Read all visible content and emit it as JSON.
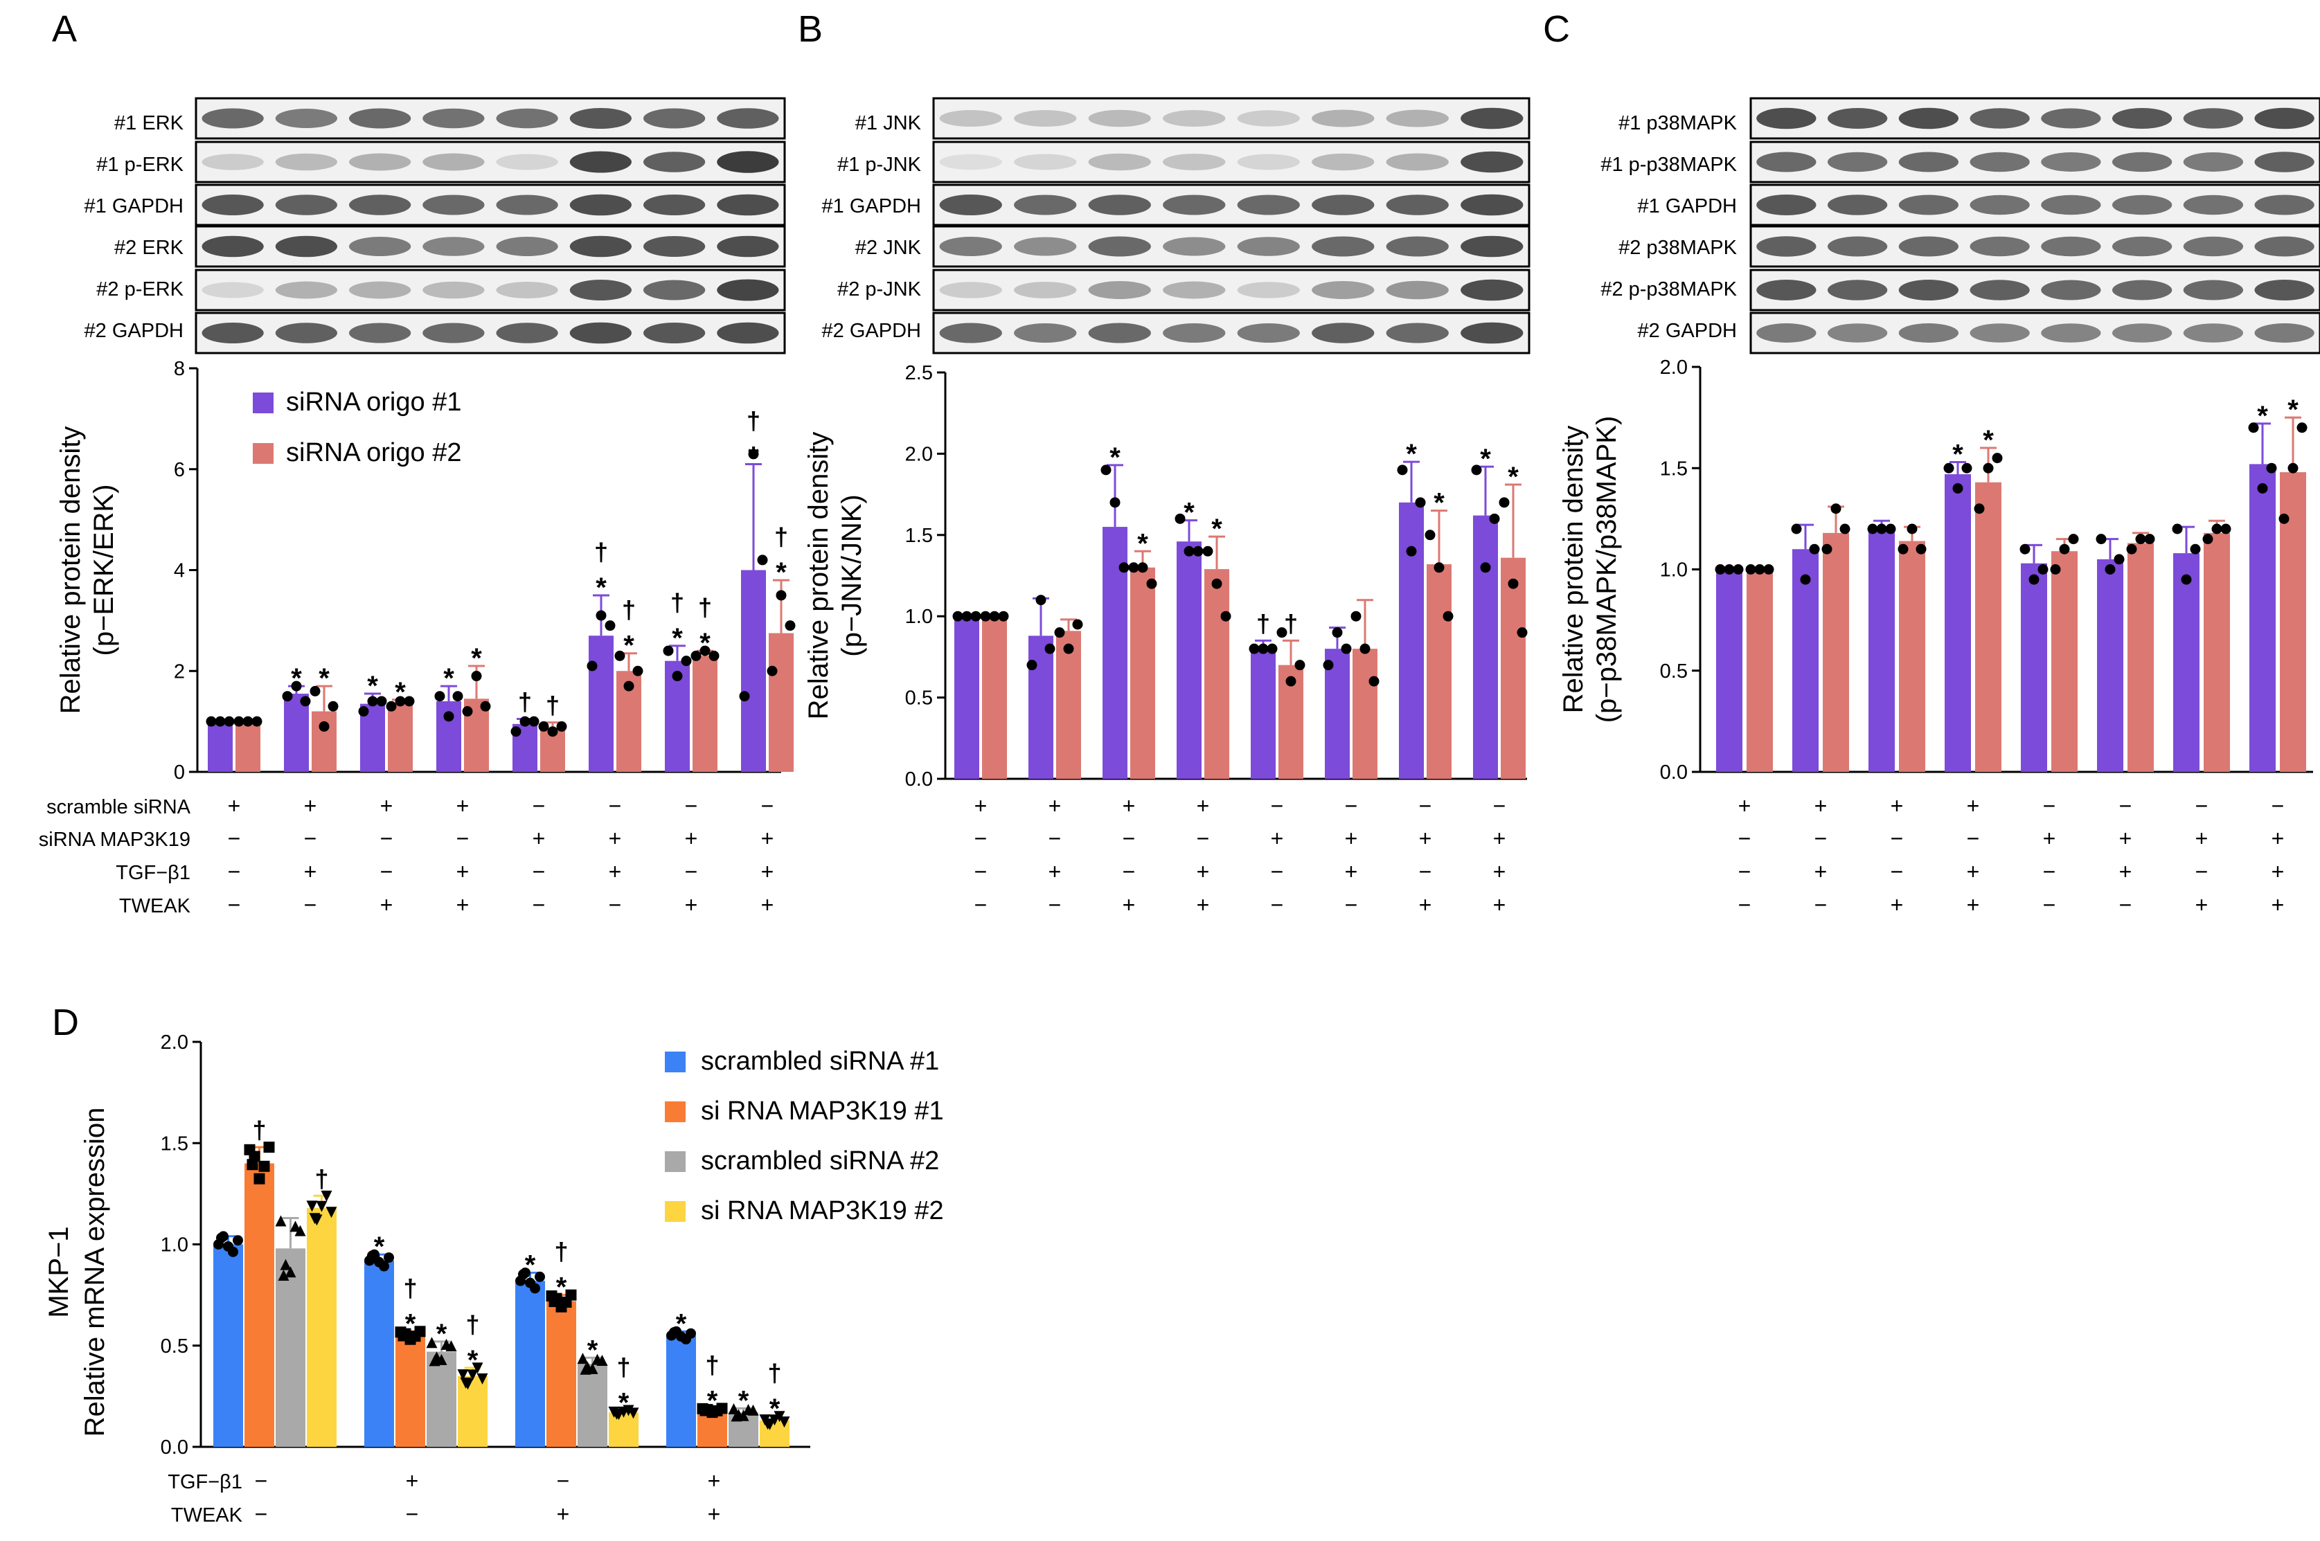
{
  "colors": {
    "purple": "#7c4bd9",
    "salmon": "#dc7872",
    "blue": "#3b82f6",
    "orange": "#f97c35",
    "gray": "#a9a9a9",
    "yellow": "#fcd541"
  },
  "panels": {
    "A": {
      "letter": "A",
      "blot_labels": [
        "#1 ERK",
        "#1 p-ERK",
        "#1 GAPDH",
        "#2 ERK",
        "#2 p-ERK",
        "#2 GAPDH"
      ]
    },
    "B": {
      "letter": "B",
      "blot_labels": [
        "#1 JNK",
        "#1 p-JNK",
        "#1 GAPDH",
        "#2 JNK",
        "#2 p-JNK",
        "#2 GAPDH"
      ]
    },
    "C": {
      "letter": "C",
      "blot_labels": [
        "#1 p38MAPK",
        "#1 p-p38MAPK",
        "#1 GAPDH",
        "#2 p38MAPK",
        "#2 p-p38MAPK",
        "#2 GAPDH"
      ]
    },
    "D": {
      "letter": "D"
    }
  },
  "conditions_abc": {
    "row_labels": [
      "scramble siRNA",
      "siRNA MAP3K19",
      "TGF−β1",
      "TWEAK"
    ],
    "rows": [
      [
        "+",
        "+",
        "+",
        "+",
        "−",
        "−",
        "−",
        "−"
      ],
      [
        "−",
        "−",
        "−",
        "−",
        "+",
        "+",
        "+",
        "+"
      ],
      [
        "−",
        "+",
        "−",
        "+",
        "−",
        "+",
        "−",
        "+"
      ],
      [
        "−",
        "−",
        "+",
        "+",
        "−",
        "−",
        "+",
        "+"
      ]
    ]
  },
  "conditions_d": {
    "row_labels": [
      "TGF−β1",
      "TWEAK"
    ],
    "rows": [
      [
        "−",
        "+",
        "−",
        "+"
      ],
      [
        "−",
        "−",
        "+",
        "+"
      ]
    ]
  },
  "chart_data": [
    {
      "panel": "A",
      "type": "bar",
      "ylabel": [
        "Relative protein density",
        "(p−ERK/ERK)"
      ],
      "ylim": [
        0,
        8
      ],
      "yticks": [
        "0",
        "2",
        "4",
        "6",
        "8"
      ],
      "legend": {
        "position": "top-left"
      },
      "series": [
        {
          "name": "siRNA origo #1",
          "values": [
            1.0,
            1.55,
            1.35,
            1.4,
            0.95,
            2.7,
            2.2,
            4.0
          ],
          "err": [
            0.02,
            0.15,
            0.2,
            0.3,
            0.1,
            0.8,
            0.3,
            2.1
          ],
          "points": [
            [
              1,
              1,
              1
            ],
            [
              1.5,
              1.7,
              1.4
            ],
            [
              1.2,
              1.4,
              1.4
            ],
            [
              1.5,
              1.1,
              1.5
            ],
            [
              0.8,
              1.0,
              1.0
            ],
            [
              2.1,
              3.1,
              2.9
            ],
            [
              2.4,
              1.9,
              2.2
            ],
            [
              1.5,
              6.3,
              4.2
            ]
          ],
          "marks": [
            "",
            "*",
            "*",
            "*",
            "†",
            "†\n*",
            "†\n*",
            "†\n*"
          ]
        },
        {
          "name": "siRNA origo #2",
          "values": [
            1.0,
            1.2,
            1.35,
            1.45,
            0.88,
            2.0,
            2.3,
            2.75
          ],
          "err": [
            0.02,
            0.5,
            0.08,
            0.65,
            0.1,
            0.35,
            0.1,
            1.05
          ],
          "points": [
            [
              1,
              1,
              1
            ],
            [
              1.6,
              0.9,
              1.3
            ],
            [
              1.3,
              1.4,
              1.4
            ],
            [
              1.2,
              1.9,
              1.3
            ],
            [
              0.9,
              0.8,
              0.9
            ],
            [
              2.3,
              1.7,
              2.0
            ],
            [
              2.3,
              2.4,
              2.3
            ],
            [
              2.0,
              3.5,
              2.9
            ]
          ],
          "marks": [
            "",
            "*",
            "*",
            "*",
            "†",
            "†\n*",
            "†\n*",
            "†\n*"
          ]
        }
      ]
    },
    {
      "panel": "B",
      "type": "bar",
      "ylabel": [
        "Relative protein density",
        "(p−JNK/JNK)"
      ],
      "ylim": [
        0,
        2.5
      ],
      "yticks": [
        "0.0",
        "0.5",
        "1.0",
        "1.5",
        "2.0",
        "2.5"
      ],
      "series": [
        {
          "name": "siRNA origo #1",
          "values": [
            1.0,
            0.88,
            1.55,
            1.46,
            0.8,
            0.8,
            1.7,
            1.62
          ],
          "err": [
            0.01,
            0.23,
            0.38,
            0.13,
            0.05,
            0.13,
            0.25,
            0.3
          ],
          "points": [
            [
              1,
              1,
              1
            ],
            [
              0.7,
              1.1,
              0.8
            ],
            [
              1.9,
              1.7,
              1.3
            ],
            [
              1.6,
              1.4,
              1.4
            ],
            [
              0.8,
              0.8,
              0.8
            ],
            [
              0.7,
              0.9,
              0.8
            ],
            [
              1.9,
              1.4,
              1.7
            ],
            [
              1.9,
              1.3,
              1.6
            ]
          ],
          "marks": [
            "",
            "",
            "*",
            "*",
            "†",
            "",
            "*",
            "*"
          ]
        },
        {
          "name": "siRNA origo #2",
          "values": [
            1.0,
            0.91,
            1.3,
            1.29,
            0.7,
            0.8,
            1.32,
            1.36
          ],
          "err": [
            0.01,
            0.07,
            0.1,
            0.2,
            0.15,
            0.3,
            0.33,
            0.45
          ],
          "points": [
            [
              1,
              1,
              1
            ],
            [
              0.9,
              0.8,
              0.95
            ],
            [
              1.3,
              1.3,
              1.2
            ],
            [
              1.4,
              1.2,
              1.0
            ],
            [
              0.9,
              0.6,
              0.7
            ],
            [
              1.0,
              0.8,
              0.6
            ],
            [
              1.5,
              1.3,
              1.0
            ],
            [
              1.7,
              1.2,
              0.9
            ]
          ],
          "marks": [
            "",
            "",
            "*",
            "*",
            "†",
            "",
            "*",
            "*"
          ]
        }
      ]
    },
    {
      "panel": "C",
      "type": "bar",
      "ylabel": [
        "Relative protein density",
        "(p−p38MAPK/p38MAPK)"
      ],
      "ylim": [
        0,
        2.0
      ],
      "yticks": [
        "0.0",
        "0.5",
        "1.0",
        "1.5",
        "2.0"
      ],
      "series": [
        {
          "name": "siRNA origo #1",
          "values": [
            1.0,
            1.1,
            1.2,
            1.47,
            1.03,
            1.05,
            1.08,
            1.52
          ],
          "err": [
            0.01,
            0.12,
            0.04,
            0.06,
            0.09,
            0.1,
            0.13,
            0.2
          ],
          "points": [
            [
              1,
              1,
              1
            ],
            [
              1.2,
              0.95,
              1.1
            ],
            [
              1.2,
              1.2,
              1.2
            ],
            [
              1.5,
              1.4,
              1.5
            ],
            [
              1.1,
              0.95,
              1.0
            ],
            [
              1.15,
              1.0,
              1.05
            ],
            [
              1.2,
              0.95,
              1.1
            ],
            [
              1.7,
              1.4,
              1.5
            ]
          ],
          "marks": [
            "",
            "",
            "",
            "*",
            "",
            "",
            "",
            "*"
          ]
        },
        {
          "name": "siRNA origo #2",
          "values": [
            1.0,
            1.18,
            1.14,
            1.43,
            1.09,
            1.13,
            1.18,
            1.48
          ],
          "err": [
            0.01,
            0.13,
            0.07,
            0.17,
            0.06,
            0.05,
            0.06,
            0.27
          ],
          "points": [
            [
              1,
              1,
              1
            ],
            [
              1.1,
              1.3,
              1.2
            ],
            [
              1.1,
              1.2,
              1.1
            ],
            [
              1.3,
              1.5,
              1.55
            ],
            [
              1.0,
              1.1,
              1.15
            ],
            [
              1.1,
              1.15,
              1.15
            ],
            [
              1.15,
              1.2,
              1.2
            ],
            [
              1.25,
              1.5,
              1.7
            ]
          ],
          "marks": [
            "",
            "",
            "",
            "*",
            "",
            "",
            "",
            "*"
          ]
        }
      ]
    },
    {
      "panel": "D",
      "type": "bar",
      "title": "MKP−1",
      "ylabel": "Relative mRNA expression",
      "ylim": [
        0,
        2.0
      ],
      "yticks": [
        "0.0",
        "0.5",
        "1.0",
        "1.5",
        "2.0"
      ],
      "legend": {
        "position": "top-right"
      },
      "series": [
        {
          "name": "scrambled siRNA #1",
          "values": [
            1.0,
            0.92,
            0.82,
            0.55
          ],
          "err": [
            0.04,
            0.03,
            0.04,
            0.02
          ],
          "marker": "circle",
          "marks": [
            "",
            "*",
            "*",
            "*"
          ]
        },
        {
          "name": "si RNA MAP3K19 #1",
          "values": [
            1.4,
            0.55,
            0.72,
            0.18
          ],
          "err": [
            0.08,
            0.02,
            0.03,
            0.01
          ],
          "marker": "square",
          "marks": [
            "†",
            "†\n*",
            "†\n*",
            "†\n*"
          ]
        },
        {
          "name": "scrambled siRNA #2",
          "values": [
            0.98,
            0.47,
            0.41,
            0.17
          ],
          "err": [
            0.15,
            0.05,
            0.03,
            0.02
          ],
          "marker": "triangle",
          "marks": [
            "",
            "*",
            "*",
            "*"
          ]
        },
        {
          "name": "si RNA MAP3K19 #2",
          "values": [
            1.18,
            0.35,
            0.17,
            0.13
          ],
          "err": [
            0.06,
            0.04,
            0.01,
            0.02
          ],
          "marker": "triangle-down",
          "marks": [
            "†",
            "†\n*",
            "†\n*",
            "†\n*"
          ]
        }
      ]
    }
  ]
}
